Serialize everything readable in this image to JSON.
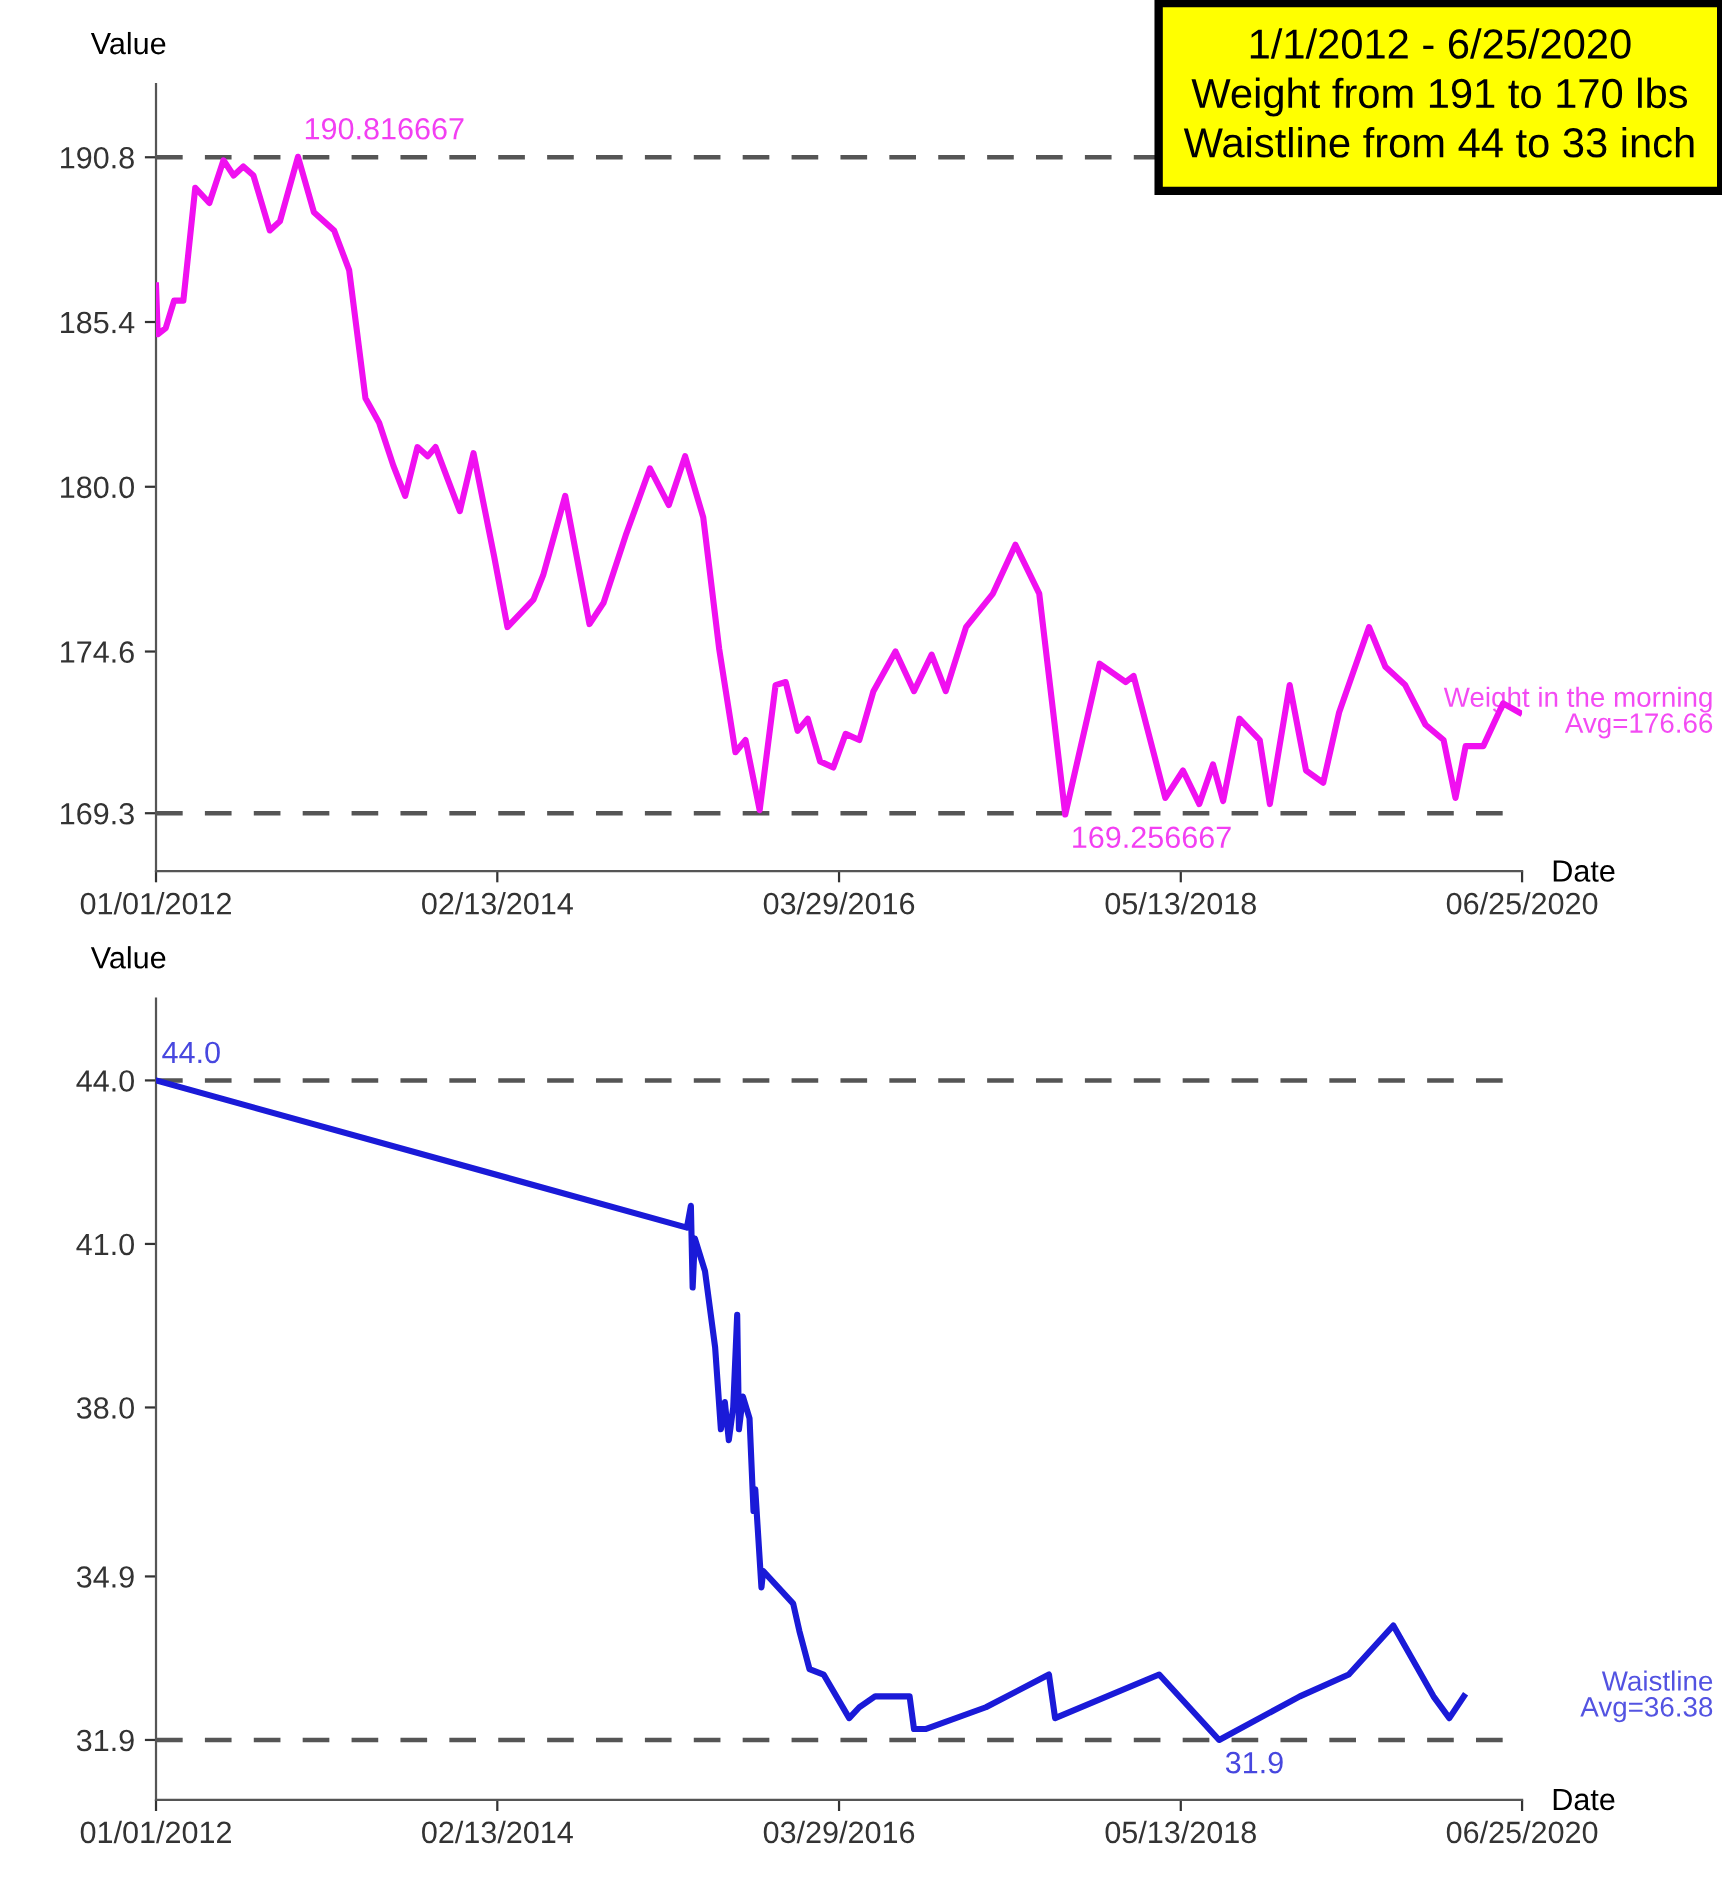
{
  "chart_data": [
    {
      "type": "line",
      "title": "1/1/2012 - 6/25/2020\nWeight from 191 to 170 lbs\nWaistline from 44 to 33 inch",
      "xlabel": "Date",
      "ylabel": "Value",
      "xlim": [
        "2012-01-01",
        "2020-06-25"
      ],
      "ylim": [
        167.4,
        193.2
      ],
      "xticks": [
        {
          "value": "2012-01-01",
          "label": "01/01/2012"
        },
        {
          "value": "2014-02-13",
          "label": "02/13/2014"
        },
        {
          "value": "2016-03-29",
          "label": "03/29/2016"
        },
        {
          "value": "2018-05-13",
          "label": "05/13/2018"
        },
        {
          "value": "2020-06-25",
          "label": "06/25/2020"
        }
      ],
      "yticks": [
        169.3,
        174.6,
        {
          "value": 180.0,
          "label": "180.0"
        },
        185.4,
        190.8
      ],
      "grid": false,
      "ref_lines": [
        {
          "axis": "y",
          "value": 190.8,
          "label": null,
          "color": "#555555",
          "line_style": "dashed"
        },
        {
          "axis": "y",
          "value": 169.3,
          "label": null,
          "color": "#555555",
          "line_style": "dashed"
        }
      ],
      "annotations": [
        {
          "text": "190.816667",
          "x": "2012-11-18",
          "y": 190.816667
        },
        {
          "text": "169.256667",
          "x": "2017-08-24",
          "y": 169.256667
        },
        "Avg=176.66"
      ],
      "series": [
        {
          "name": "Weight in the morning",
          "color": "#f010f0",
          "x": [
            "2012-01-01",
            "2012-01-05",
            "2012-01-23",
            "2012-02-11",
            "2012-03-03",
            "2012-03-30",
            "2012-05-01",
            "2012-06-02",
            "2012-06-25",
            "2012-07-17",
            "2012-08-09",
            "2012-09-15",
            "2012-10-08",
            "2012-11-18",
            "2012-12-24",
            "2013-02-08",
            "2013-03-14",
            "2013-04-20",
            "2013-05-21",
            "2013-06-22",
            "2013-07-19",
            "2013-08-16",
            "2013-09-08",
            "2013-09-26",
            "2013-11-20",
            "2013-12-21",
            "2014-02-06",
            "2014-03-08",
            "2014-05-06",
            "2014-05-28",
            "2014-07-17",
            "2014-09-10",
            "2014-10-12",
            "2014-12-01",
            "2015-01-25",
            "2015-03-09",
            "2015-04-15",
            "2015-05-26",
            "2015-07-01",
            "2015-08-07",
            "2015-08-30",
            "2015-10-01",
            "2015-11-06",
            "2015-11-29",
            "2015-12-26",
            "2016-01-18",
            "2016-02-15",
            "2016-03-16",
            "2016-04-13",
            "2016-05-14",
            "2016-06-15",
            "2016-08-04",
            "2016-09-15",
            "2016-10-25",
            "2016-11-26",
            "2017-01-11",
            "2017-03-13",
            "2017-05-03",
            "2017-06-26",
            "2017-08-24",
            "2017-11-10",
            "2018-01-08",
            "2018-01-26",
            "2018-04-08",
            "2018-05-18",
            "2018-06-24",
            "2018-07-25",
            "2018-08-17",
            "2018-09-23",
            "2018-11-08",
            "2018-12-01",
            "2019-01-15",
            "2019-02-21",
            "2019-04-01",
            "2019-05-07",
            "2019-07-14",
            "2019-08-20",
            "2019-10-04",
            "2019-11-19",
            "2019-12-30",
            "2020-01-26",
            "2020-02-18",
            "2020-03-29",
            "2020-05-13",
            "2020-06-19"
          ],
          "values": [
            186.6,
            185.0,
            185.2,
            186.1,
            186.1,
            189.8,
            189.3,
            190.7,
            190.2,
            190.5,
            190.2,
            188.4,
            188.7,
            190.816667,
            189.0,
            188.4,
            187.1,
            182.9,
            182.1,
            180.7,
            179.7,
            181.3,
            181.0,
            181.3,
            179.2,
            181.1,
            177.7,
            175.4,
            176.3,
            177.1,
            179.7,
            175.5,
            176.2,
            178.4,
            180.6,
            179.4,
            181.0,
            179.0,
            174.7,
            171.3,
            171.7,
            169.4,
            173.5,
            173.6,
            172.0,
            172.4,
            171.0,
            170.8,
            171.9,
            171.7,
            173.3,
            174.6,
            173.3,
            174.5,
            173.3,
            175.4,
            176.5,
            178.1,
            176.5,
            169.256667,
            174.2,
            173.6,
            173.8,
            169.8,
            170.7,
            169.6,
            170.9,
            169.7,
            172.4,
            171.7,
            169.6,
            173.5,
            170.7,
            170.3,
            172.6,
            175.4,
            174.1,
            173.5,
            172.2,
            171.7,
            169.8,
            171.5,
            171.5,
            172.9,
            172.6
          ]
        }
      ]
    },
    {
      "type": "line",
      "xlabel": "Date",
      "ylabel": "Value",
      "xlim": [
        "2012-01-01",
        "2020-06-25"
      ],
      "ylim": [
        30.8,
        45.5
      ],
      "xticks": [
        {
          "value": "2012-01-01",
          "label": "01/01/2012"
        },
        {
          "value": "2014-02-13",
          "label": "02/13/2014"
        },
        {
          "value": "2016-03-29",
          "label": "03/29/2016"
        },
        {
          "value": "2018-05-13",
          "label": "05/13/2018"
        },
        {
          "value": "2020-06-25",
          "label": "06/25/2020"
        }
      ],
      "yticks": [
        31.9,
        34.9,
        {
          "value": 38.0,
          "label": "38.0"
        },
        {
          "value": 41.0,
          "label": "41.0"
        },
        {
          "value": 44.0,
          "label": "44.0"
        }
      ],
      "grid": false,
      "ref_lines": [
        {
          "axis": "y",
          "value": 44.0,
          "label": null,
          "color": "#555555",
          "line_style": "dashed"
        },
        {
          "axis": "y",
          "value": 31.9,
          "label": null,
          "color": "#555555",
          "line_style": "dashed"
        }
      ],
      "annotations": [
        {
          "text": "44.0",
          "x": "2012-01-01",
          "y": 44.0
        },
        {
          "text": "31.9",
          "x": "2018-08-08",
          "y": 31.9
        },
        "Avg=36.38"
      ],
      "series": [
        {
          "name": "Waistline",
          "color": "#1a1ad8",
          "x": [
            "2012-01-01",
            "2015-04-19",
            "2015-04-28",
            "2015-05-02",
            "2015-05-07",
            "2015-05-30",
            "2015-06-22",
            "2015-07-05",
            "2015-07-14",
            "2015-07-23",
            "2015-08-02",
            "2015-08-11",
            "2015-08-15",
            "2015-08-24",
            "2015-09-08",
            "2015-09-17",
            "2015-09-21",
            "2015-10-05",
            "2015-10-09",
            "2015-12-16",
            "2015-12-30",
            "2016-01-22",
            "2016-02-23",
            "2016-04-21",
            "2016-05-14",
            "2016-06-19",
            "2016-09-05",
            "2016-09-15",
            "2016-10-11",
            "2017-02-25",
            "2017-07-18",
            "2017-08-01",
            "2018-03-25",
            "2018-08-08",
            "2019-02-07",
            "2019-05-29",
            "2019-09-07",
            "2019-12-07",
            "2020-01-12",
            "2020-02-14"
          ],
          "values": [
            44.0,
            41.3,
            41.7,
            40.2,
            41.1,
            40.5,
            39.1,
            37.6,
            38.1,
            37.4,
            38.0,
            39.7,
            37.6,
            38.2,
            37.8,
            36.1,
            36.5,
            34.7,
            35.0,
            34.4,
            33.9,
            33.2,
            33.1,
            32.3,
            32.5,
            32.7,
            32.7,
            32.1,
            32.1,
            32.5,
            33.1,
            32.3,
            33.1,
            31.9,
            32.7,
            33.1,
            34.0,
            32.7,
            32.3,
            32.7
          ]
        }
      ]
    }
  ]
}
